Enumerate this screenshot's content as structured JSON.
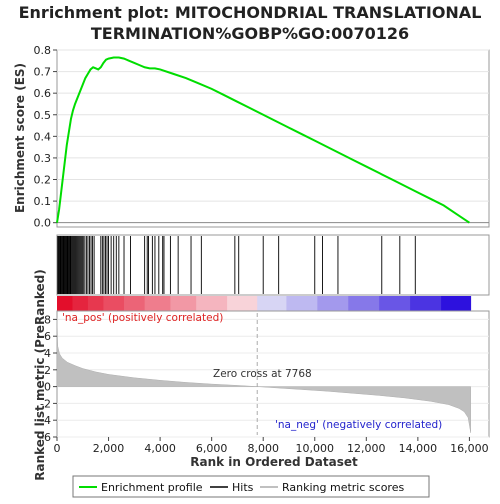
{
  "title_lines": [
    "Enrichment plot: MITOCHONDRIAL TRANSLATIONAL",
    "TERMINATION%GOBP%GO:0070126"
  ],
  "annotations": {
    "pos_label": "'na_pos' (positively correlated)",
    "neg_label": "'na_neg' (negatively correlated)",
    "zero_cross": "Zero cross at 7768"
  },
  "legend": {
    "items": [
      {
        "label": "Enrichment profile",
        "color": "#00dd00"
      },
      {
        "label": "Hits",
        "color": "#000000"
      },
      {
        "label": "Ranking metric scores",
        "color": "#c0c0c0"
      }
    ]
  },
  "colors": {
    "es_line": "#00dd00",
    "pos_text": "#dd2222",
    "neg_text": "#2222cc"
  },
  "chart_data": [
    {
      "type": "line",
      "ylabel": "Enrichment score (ES)",
      "xlim": [
        0,
        16760
      ],
      "ylim": [
        -0.02,
        0.8
      ],
      "yticks": [
        0.0,
        0.1,
        0.2,
        0.3,
        0.4,
        0.5,
        0.6,
        0.7,
        0.8
      ],
      "ytick_labels": [
        "0.0",
        "0.1",
        "0.2",
        "0.3",
        "0.4",
        "0.5",
        "0.6",
        "0.7",
        "0.8"
      ],
      "series": [
        {
          "x": [
            0,
            80,
            150,
            220,
            300,
            380,
            460,
            540,
            620,
            700,
            800,
            900,
            1000,
            1100,
            1200,
            1300,
            1400,
            1500,
            1600,
            1700,
            1800,
            1900,
            2000,
            2200,
            2400,
            2600,
            2800,
            3000,
            3200,
            3400,
            3600,
            3800,
            4000,
            4500,
            5000,
            5500,
            6000,
            6500,
            7000,
            7500,
            8000,
            8500,
            9000,
            9500,
            10000,
            10500,
            11000,
            11500,
            12000,
            12500,
            13000,
            13500,
            14000,
            14500,
            15000,
            15500,
            16000
          ],
          "y": [
            0.0,
            0.06,
            0.13,
            0.2,
            0.28,
            0.36,
            0.42,
            0.48,
            0.52,
            0.55,
            0.58,
            0.61,
            0.64,
            0.67,
            0.69,
            0.71,
            0.72,
            0.715,
            0.71,
            0.72,
            0.74,
            0.755,
            0.76,
            0.765,
            0.765,
            0.76,
            0.75,
            0.74,
            0.73,
            0.72,
            0.715,
            0.715,
            0.71,
            0.69,
            0.67,
            0.645,
            0.62,
            0.59,
            0.56,
            0.53,
            0.5,
            0.47,
            0.44,
            0.41,
            0.38,
            0.35,
            0.32,
            0.29,
            0.26,
            0.23,
            0.2,
            0.17,
            0.14,
            0.11,
            0.08,
            0.04,
            0.0
          ]
        }
      ]
    },
    {
      "type": "scatter",
      "name": "hits",
      "xlim": [
        0,
        16760
      ],
      "x": [
        30,
        60,
        90,
        120,
        150,
        180,
        210,
        240,
        270,
        300,
        330,
        360,
        390,
        420,
        450,
        480,
        510,
        540,
        580,
        620,
        660,
        700,
        740,
        780,
        820,
        860,
        900,
        940,
        980,
        1020,
        1080,
        1140,
        1200,
        1260,
        1320,
        1380,
        1440,
        1700,
        1760,
        1820,
        1880,
        1940,
        2000,
        2100,
        2200,
        2300,
        2400,
        2600,
        2850,
        3400,
        3500,
        3550,
        3700,
        3800,
        3950,
        4100,
        4150,
        4400,
        4700,
        5200,
        5600,
        6900,
        7050,
        8000,
        8600,
        10000,
        10300,
        10900,
        12600,
        13300,
        13900
      ]
    },
    {
      "type": "area",
      "name": "ranking metric",
      "ylabel": "Ranked list metric (PreRanked)",
      "xlabel": "Rank in Ordered Dataset",
      "xlim": [
        0,
        16760
      ],
      "ylim": [
        -6,
        9
      ],
      "xticks": [
        0,
        2000,
        4000,
        6000,
        8000,
        10000,
        12000,
        14000,
        16000
      ],
      "xtick_labels": [
        "0",
        "2,000",
        "4,000",
        "6,000",
        "8,000",
        "10,000",
        "12,000",
        "14,000",
        "16,000"
      ],
      "yticks": [
        -6,
        -4,
        -2,
        0,
        2,
        4,
        6,
        8
      ],
      "ytick_labels": [
        "-6",
        "-4",
        "-2",
        "0",
        "2",
        "4",
        "6",
        "8"
      ],
      "zero_cross": 7768,
      "x": [
        0,
        30,
        100,
        200,
        400,
        700,
        1000,
        1500,
        2000,
        3000,
        4000,
        5000,
        6000,
        7000,
        7768,
        8500,
        9500,
        10500,
        11500,
        12500,
        13500,
        14500,
        15200,
        15600,
        15800,
        15950,
        16050
      ],
      "y": [
        8.2,
        4.8,
        3.9,
        3.4,
        2.9,
        2.5,
        2.15,
        1.75,
        1.45,
        1.05,
        0.75,
        0.5,
        0.3,
        0.14,
        0.0,
        -0.15,
        -0.35,
        -0.55,
        -0.8,
        -1.05,
        -1.35,
        -1.75,
        -2.15,
        -2.6,
        -3.0,
        -3.7,
        -5.5
      ]
    }
  ]
}
